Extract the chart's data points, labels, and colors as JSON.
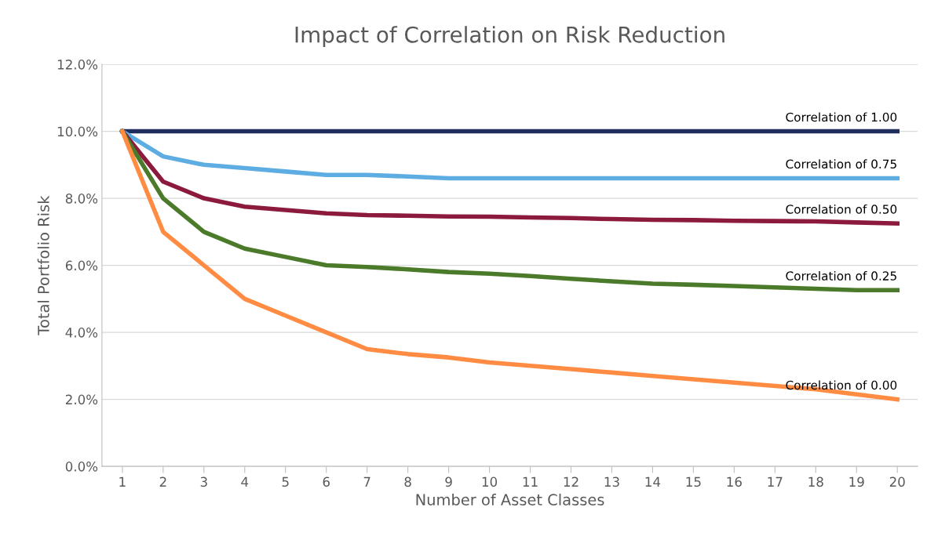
{
  "chart_data": {
    "type": "line",
    "title": "Impact of Correlation on Risk Reduction",
    "xlabel": "Number of Asset Classes",
    "ylabel": "Total Portfolio Risk",
    "categories": [
      "1",
      "2",
      "3",
      "4",
      "5",
      "6",
      "7",
      "8",
      "9",
      "10",
      "11",
      "12",
      "13",
      "14",
      "15",
      "16",
      "17",
      "18",
      "19",
      "20"
    ],
    "series": [
      {
        "name": "Correlation of 1.00",
        "color": "#1f2d5c",
        "values": [
          10,
          10,
          10,
          10,
          10,
          10,
          10,
          10,
          10,
          10,
          10,
          10,
          10,
          10,
          10,
          10,
          10,
          10,
          10,
          10
        ]
      },
      {
        "name": "Correlation of 0.75",
        "color": "#5dade2",
        "values": [
          10,
          9.25,
          9.0,
          8.9,
          8.8,
          8.7,
          8.7,
          8.65,
          8.6,
          8.6,
          8.6,
          8.6,
          8.6,
          8.6,
          8.6,
          8.6,
          8.6,
          8.6,
          8.6,
          8.6
        ]
      },
      {
        "name": "Correlation of 0.50",
        "color": "#8b1a3c",
        "values": [
          10,
          8.5,
          8.0,
          7.75,
          7.65,
          7.55,
          7.5,
          7.48,
          7.46,
          7.45,
          7.43,
          7.41,
          7.38,
          7.36,
          7.35,
          7.33,
          7.32,
          7.31,
          7.28,
          7.25
        ]
      },
      {
        "name": "Correlation of 0.25",
        "color": "#4a7a2a",
        "values": [
          10,
          8.0,
          7.0,
          6.5,
          6.25,
          6.0,
          5.95,
          5.88,
          5.8,
          5.75,
          5.68,
          5.6,
          5.52,
          5.45,
          5.42,
          5.38,
          5.34,
          5.3,
          5.26,
          5.26
        ]
      },
      {
        "name": "Correlation of 0.00",
        "color": "#ff8c42",
        "values": [
          10,
          7.0,
          6.0,
          5.0,
          4.5,
          4.0,
          3.5,
          3.35,
          3.25,
          3.1,
          3.0,
          2.9,
          2.8,
          2.7,
          2.6,
          2.5,
          2.4,
          2.3,
          2.15,
          2.0
        ]
      }
    ],
    "ylim": [
      0,
      12
    ],
    "yticks": [
      {
        "value": 0,
        "label": "0.0%"
      },
      {
        "value": 2,
        "label": "2.0%"
      },
      {
        "value": 4,
        "label": "4.0%"
      },
      {
        "value": 6,
        "label": "6.0%"
      },
      {
        "value": 8,
        "label": "8.0%"
      },
      {
        "value": 10,
        "label": "10.0%"
      },
      {
        "value": 12,
        "label": "12.0%"
      }
    ],
    "grid": "y",
    "legend": false,
    "marker": "none",
    "line_style": "solid"
  }
}
